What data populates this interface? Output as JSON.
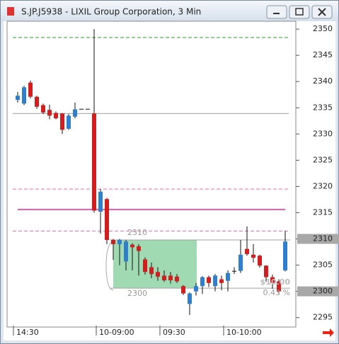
{
  "chart_data": {
    "type": "candlestick",
    "title": "S.JP.J5938 - LIXIL Group Corporation, 3 Min",
    "categories": [
      "14:30",
      null,
      null,
      null,
      null,
      null,
      null,
      null,
      null,
      null,
      null,
      null,
      null,
      "10-09:00",
      null,
      null,
      null,
      null,
      null,
      null,
      null,
      null,
      null,
      "09:30",
      null,
      null,
      null,
      null,
      null,
      null,
      null,
      null,
      null,
      "10-10:00",
      null,
      null,
      null,
      null,
      null,
      null,
      null,
      null,
      null
    ],
    "open": [
      2336.5,
      2335.8,
      2339.8,
      2337.1,
      2335.5,
      2334.6,
      2334,
      2333.9,
      2331,
      2333.3,
      2334.8,
      2334.8,
      2333.9,
      2315.2,
      2317.6,
      2309.8,
      2309,
      2305.7,
      2308.9,
      2308.6,
      2306.1,
      2304.6,
      2303.7,
      2303,
      2303,
      2302.8,
      2301,
      2297.6,
      2300,
      2301,
      2302.7,
      2301,
      2302.3,
      2302,
      2303.9,
      2303.9,
      2308.1,
      2307,
      2306.8,
      2304.9,
      2302.7,
      2301.9,
      2304
    ],
    "high": [
      2338,
      2339.2,
      2340.2,
      2337.3,
      2335.8,
      2335.6,
      2334.3,
      2334,
      2333.8,
      2336,
      2334.8,
      2334.8,
      2350,
      2319.5,
      2317.8,
      2310,
      2310,
      2309.8,
      2309.2,
      2309,
      2306.5,
      2305.5,
      2304.6,
      2304,
      2303.7,
      2303.3,
      2301.2,
      2299.8,
      2301.6,
      2302.9,
      2303,
      2303.3,
      2303,
      2304,
      2304.6,
      2309.8,
      2312.4,
      2309,
      2307,
      2305,
      2303.2,
      2302.3,
      2311.5
    ],
    "low": [
      2336,
      2335.5,
      2336.8,
      2334.8,
      2333.8,
      2332.8,
      2332.8,
      2330,
      2330.8,
      2333,
      2334.8,
      2334.8,
      2315,
      2311,
      2309,
      2306,
      2305,
      2304,
      2304,
      2303,
      2303.2,
      2302.5,
      2302,
      2301.8,
      2301.5,
      2301.6,
      2299.3,
      2295.5,
      2299.2,
      2299.5,
      2300.8,
      2300,
      2300.2,
      2300,
      2303.3,
      2303.5,
      2306.8,
      2305.5,
      2304.5,
      2301.8,
      2300.5,
      2299.6,
      2303.8
    ],
    "close": [
      2337.3,
      2338.9,
      2337.1,
      2335.2,
      2334.1,
      2333.5,
      2333,
      2330.8,
      2333.5,
      2334.7,
      2334.8,
      2334.8,
      2315.4,
      2319,
      2309.8,
      2309,
      2309.8,
      2309.5,
      2308.4,
      2307.7,
      2303.7,
      2303.3,
      2302.8,
      2302.1,
      2302.1,
      2301.9,
      2299.6,
      2299.6,
      2301,
      2302.7,
      2301.6,
      2303,
      2301.6,
      2303.5,
      2303.9,
      2307,
      2307.1,
      2306.4,
      2304.9,
      2302.7,
      2301.6,
      2300,
      2309.5
    ],
    "up_color": "#2f7fd0",
    "down_color": "#d21e1e",
    "ylim": [
      2293.2,
      2351.5
    ],
    "yticks": [
      2295,
      2300,
      2305,
      2310,
      2315,
      2320,
      2325,
      2330,
      2335,
      2340,
      2345,
      2350
    ],
    "price_boxes": [
      2310,
      2300
    ],
    "levels": [
      {
        "value": 2348.4,
        "color": "#2aa02a",
        "style": "dashed"
      },
      {
        "value": 2333.9,
        "color": "#a0a0a0",
        "style": "solid"
      },
      {
        "value": 2319.5,
        "color": "#e36fb0",
        "style": "dashed"
      },
      {
        "value": 2315.6,
        "color": "#e860b8",
        "style": "solid"
      },
      {
        "value": 2311.5,
        "color": "#e36fb0",
        "style": "dashed"
      },
      {
        "value": 2309.8,
        "color": "#a0a0a0",
        "style": "solid"
      },
      {
        "value": 2300.6,
        "color": "#a0a0a0",
        "style": "solid"
      }
    ],
    "zone": {
      "from": 2300.6,
      "to": 2309.8,
      "color": "#8fd3a6"
    },
    "annotations": [
      "2310",
      "2300",
      "$10.00",
      "0.43 %"
    ]
  }
}
